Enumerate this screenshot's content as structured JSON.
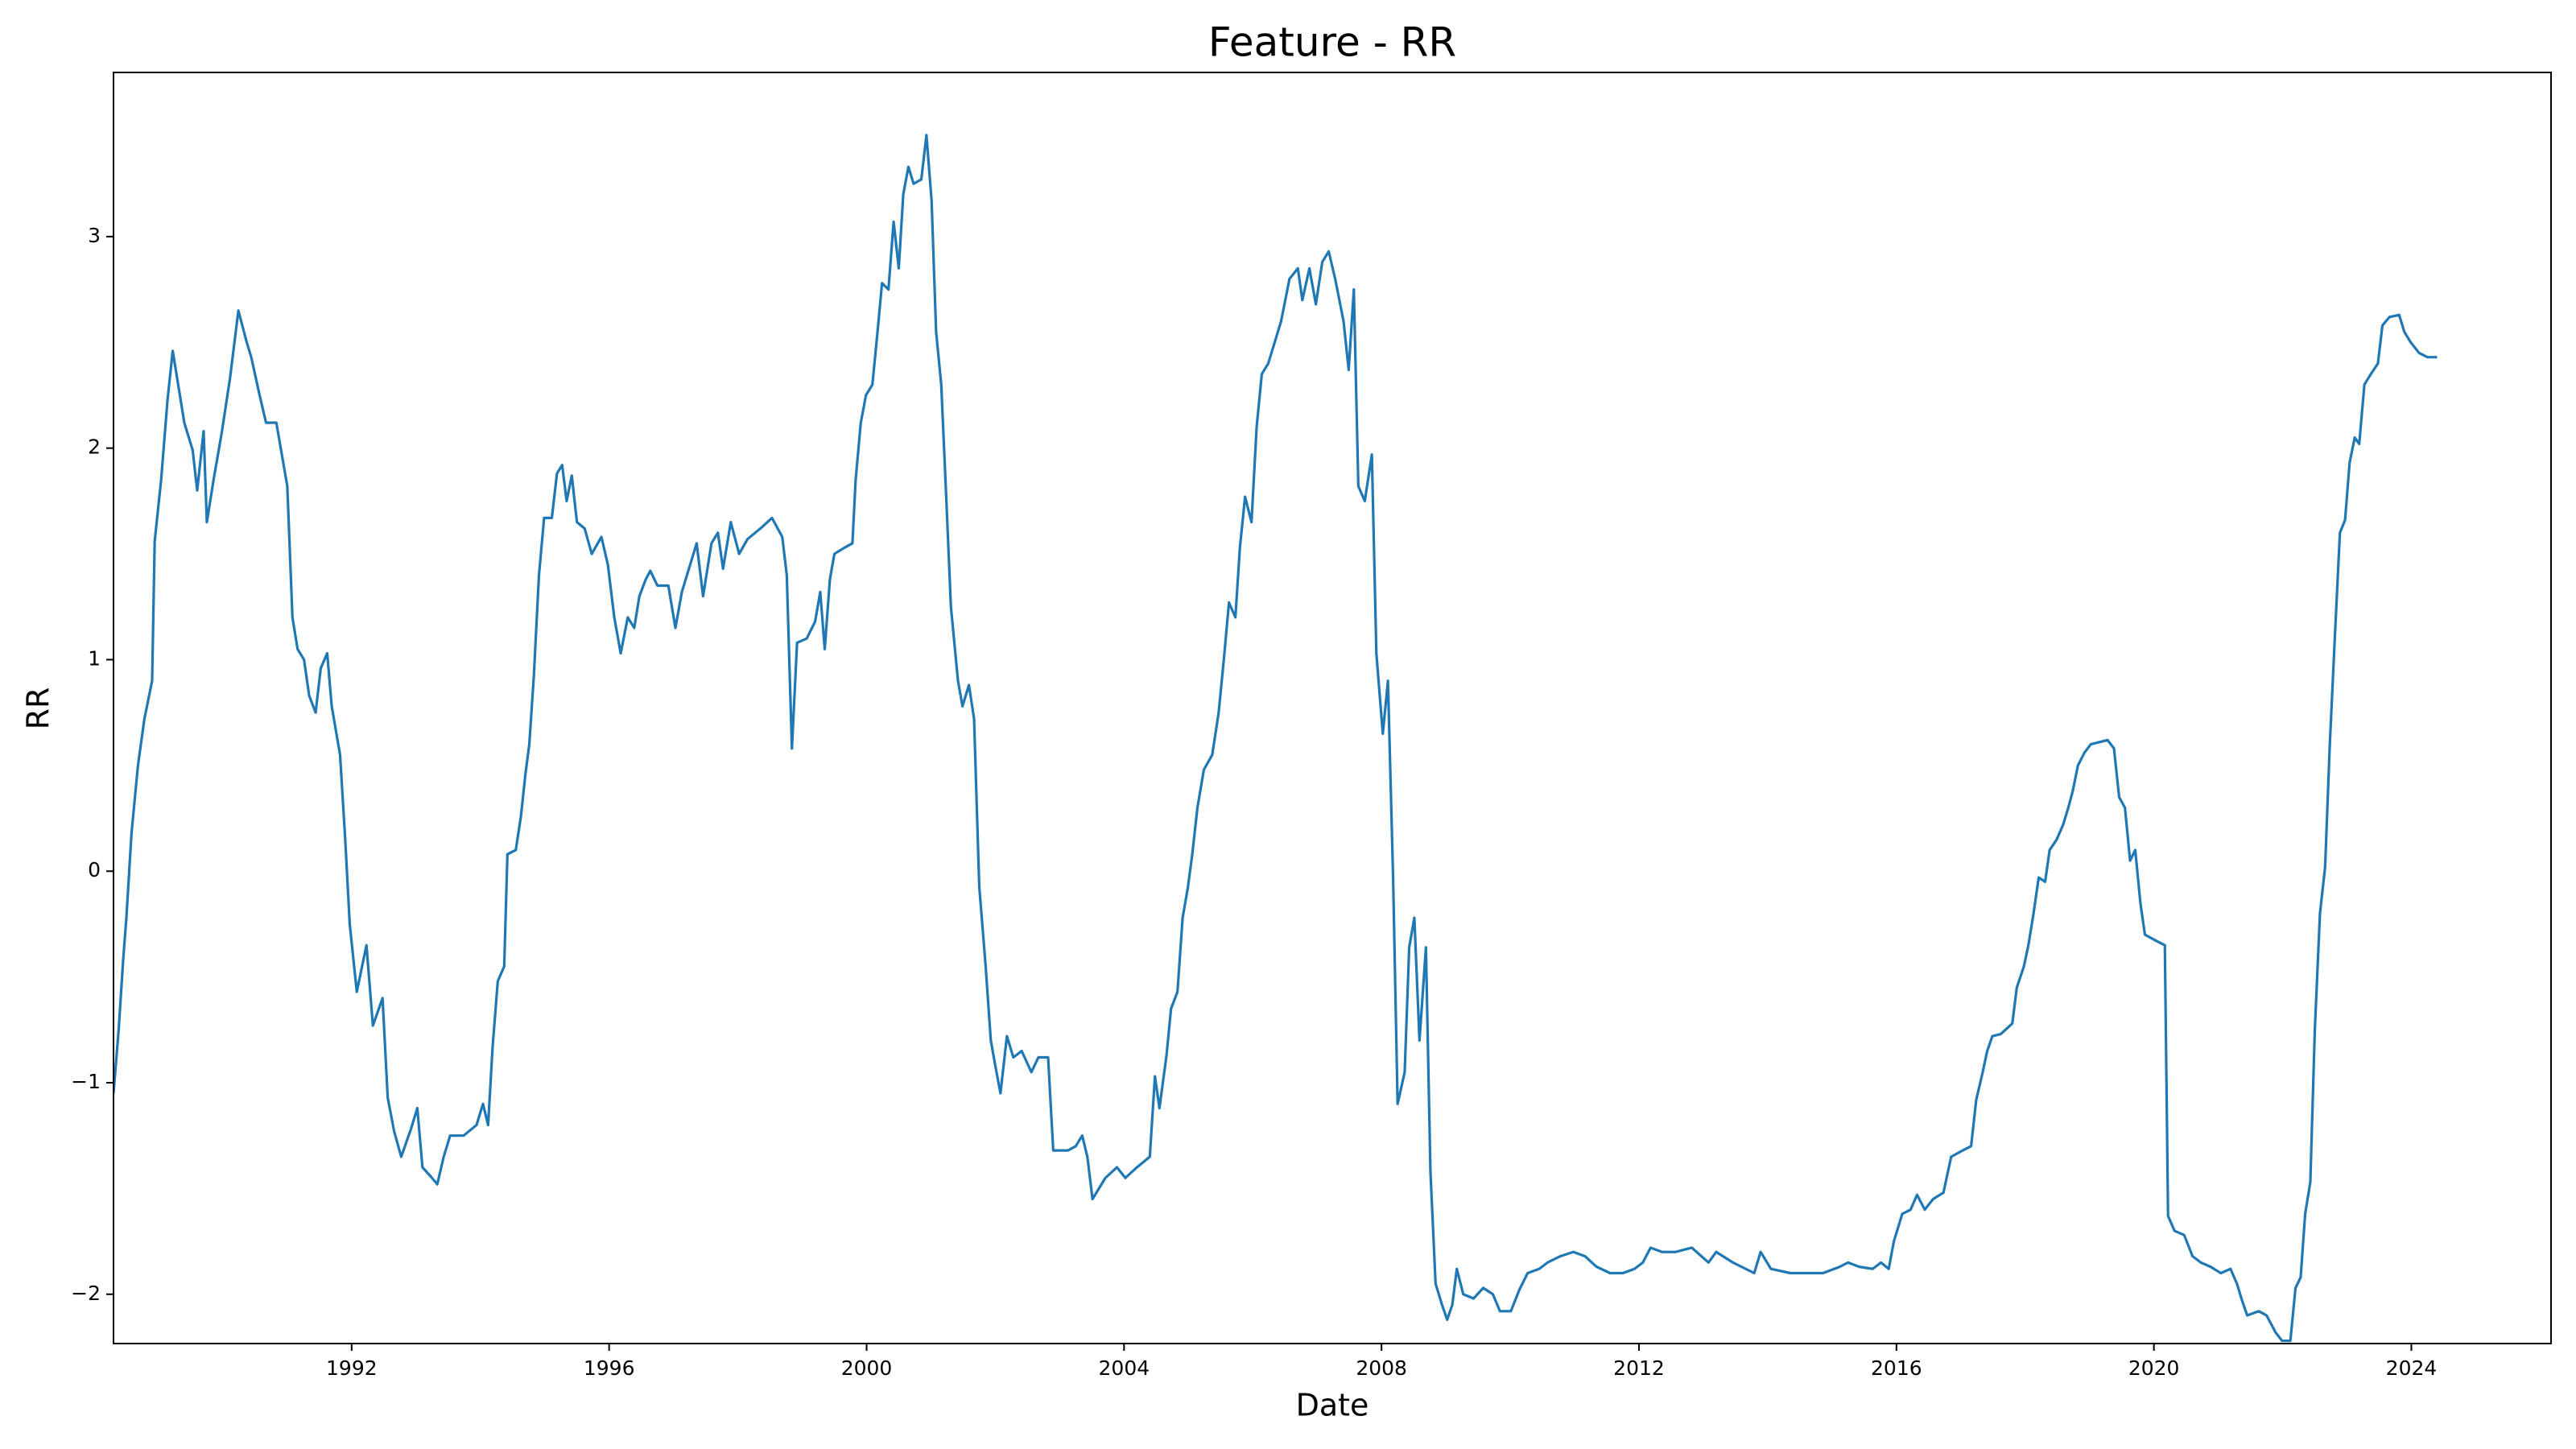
{
  "chart_data": {
    "type": "line",
    "title": "Feature - RR",
    "x_label": "Date",
    "y_label": "RR",
    "x": [
      1988.3,
      1988.38,
      1988.45,
      1988.5,
      1988.58,
      1988.68,
      1988.78,
      1988.9,
      1988.94,
      1989.04,
      1989.14,
      1989.22,
      1989.4,
      1989.53,
      1989.6,
      1989.7,
      1989.75,
      1989.86,
      1989.98,
      1990.11,
      1990.24,
      1990.37,
      1990.44,
      1990.57,
      1990.67,
      1990.83,
      1991.0,
      1991.08,
      1991.16,
      1991.26,
      1991.34,
      1991.44,
      1991.52,
      1991.62,
      1991.69,
      1991.82,
      1991.9,
      1991.97,
      1992.08,
      1992.23,
      1992.33,
      1992.48,
      1992.56,
      1992.66,
      1992.77,
      1992.92,
      1993.02,
      1993.1,
      1993.22,
      1993.33,
      1993.43,
      1993.53,
      1993.74,
      1993.94,
      1994.04,
      1994.12,
      1994.19,
      1994.27,
      1994.37,
      1994.42,
      1994.55,
      1994.63,
      1994.7,
      1994.76,
      1994.83,
      1994.91,
      1994.99,
      1995.11,
      1995.19,
      1995.27,
      1995.34,
      1995.42,
      1995.5,
      1995.62,
      1995.73,
      1995.88,
      1995.98,
      1996.08,
      1996.18,
      1996.29,
      1996.39,
      1996.47,
      1996.57,
      1996.64,
      1996.75,
      1996.92,
      1997.03,
      1997.13,
      1997.26,
      1997.36,
      1997.46,
      1997.59,
      1997.69,
      1997.77,
      1997.89,
      1998.02,
      1998.15,
      1998.35,
      1998.53,
      1998.69,
      1998.76,
      1998.84,
      1998.92,
      1999.07,
      1999.2,
      1999.28,
      1999.35,
      1999.43,
      1999.5,
      1999.66,
      1999.78,
      1999.83,
      1999.91,
      1999.99,
      2000.09,
      2000.17,
      2000.24,
      2000.34,
      2000.42,
      2000.5,
      2000.57,
      2000.65,
      2000.73,
      2000.85,
      2000.93,
      2001.01,
      2001.08,
      2001.16,
      2001.24,
      2001.31,
      2001.42,
      2001.49,
      2001.59,
      2001.67,
      2001.75,
      2001.85,
      2001.93,
      2002.0,
      2002.08,
      2002.18,
      2002.28,
      2002.41,
      2002.56,
      2002.67,
      2002.82,
      2002.9,
      2003.13,
      2003.25,
      2003.35,
      2003.43,
      2003.51,
      2003.61,
      2003.71,
      2003.89,
      2004.02,
      2004.2,
      2004.4,
      2004.48,
      2004.55,
      2004.66,
      2004.73,
      2004.83,
      2004.91,
      2004.99,
      2005.06,
      2005.14,
      2005.24,
      2005.37,
      2005.47,
      2005.55,
      2005.63,
      2005.73,
      2005.8,
      2005.88,
      2005.98,
      2006.06,
      2006.14,
      2006.24,
      2006.34,
      2006.44,
      2006.57,
      2006.7,
      2006.77,
      2006.88,
      2006.98,
      2007.08,
      2007.18,
      2007.28,
      2007.41,
      2007.49,
      2007.57,
      2007.64,
      2007.74,
      2007.85,
      2007.92,
      2008.02,
      2008.1,
      2008.18,
      2008.25,
      2008.36,
      2008.43,
      2008.51,
      2008.59,
      2008.69,
      2008.76,
      2008.84,
      2008.94,
      2009.02,
      2009.1,
      2009.17,
      2009.27,
      2009.43,
      2009.58,
      2009.73,
      2009.84,
      2010.01,
      2010.14,
      2010.27,
      2010.45,
      2010.58,
      2010.78,
      2010.98,
      2011.16,
      2011.34,
      2011.55,
      2011.75,
      2011.93,
      2012.06,
      2012.18,
      2012.36,
      2012.57,
      2012.82,
      2013.08,
      2013.2,
      2013.46,
      2013.79,
      2013.89,
      2014.05,
      2014.35,
      2014.61,
      2014.86,
      2015.12,
      2015.25,
      2015.42,
      2015.63,
      2015.76,
      2015.88,
      2015.96,
      2016.09,
      2016.22,
      2016.32,
      2016.44,
      2016.57,
      2016.73,
      2016.85,
      2017.03,
      2017.16,
      2017.24,
      2017.34,
      2017.41,
      2017.49,
      2017.62,
      2017.8,
      2017.87,
      2017.98,
      2018.05,
      2018.13,
      2018.21,
      2018.31,
      2018.38,
      2018.49,
      2018.59,
      2018.67,
      2018.74,
      2018.82,
      2018.92,
      2019.02,
      2019.15,
      2019.28,
      2019.38,
      2019.46,
      2019.55,
      2019.63,
      2019.71,
      2019.79,
      2019.86,
      2020.04,
      2020.17,
      2020.22,
      2020.32,
      2020.47,
      2020.6,
      2020.73,
      2020.88,
      2021.04,
      2021.19,
      2021.29,
      2021.37,
      2021.45,
      2021.63,
      2021.75,
      2021.89,
      2021.99,
      2022.12,
      2022.2,
      2022.28,
      2022.35,
      2022.43,
      2022.5,
      2022.58,
      2022.66,
      2022.73,
      2022.81,
      2022.89,
      2022.97,
      2023.04,
      2023.12,
      2023.19,
      2023.27,
      2023.37,
      2023.48,
      2023.55,
      2023.66,
      2023.81,
      2023.89,
      2023.99,
      2024.12,
      2024.25,
      2024.4
    ],
    "series": [
      {
        "name": "RR",
        "color": "#1f77b4",
        "values": [
          -1.05,
          -0.75,
          -0.42,
          -0.22,
          0.18,
          0.5,
          0.72,
          0.9,
          1.56,
          1.85,
          2.23,
          2.46,
          2.12,
          1.99,
          1.8,
          2.08,
          1.65,
          1.86,
          2.07,
          2.33,
          2.65,
          2.5,
          2.43,
          2.25,
          2.12,
          2.12,
          1.82,
          1.2,
          1.05,
          1.0,
          0.83,
          0.75,
          0.96,
          1.03,
          0.78,
          0.55,
          0.15,
          -0.25,
          -0.57,
          -0.35,
          -0.73,
          -0.6,
          -1.07,
          -1.23,
          -1.35,
          -1.22,
          -1.12,
          -1.4,
          -1.44,
          -1.48,
          -1.35,
          -1.25,
          -1.25,
          -1.2,
          -1.1,
          -1.2,
          -0.83,
          -0.52,
          -0.45,
          0.08,
          0.1,
          0.26,
          0.46,
          0.6,
          0.92,
          1.4,
          1.67,
          1.67,
          1.88,
          1.92,
          1.75,
          1.87,
          1.65,
          1.62,
          1.5,
          1.58,
          1.45,
          1.2,
          1.03,
          1.2,
          1.15,
          1.3,
          1.38,
          1.42,
          1.35,
          1.35,
          1.15,
          1.32,
          1.45,
          1.55,
          1.3,
          1.55,
          1.6,
          1.43,
          1.65,
          1.5,
          1.57,
          1.62,
          1.67,
          1.58,
          1.4,
          0.58,
          1.08,
          1.1,
          1.18,
          1.32,
          1.05,
          1.38,
          1.5,
          1.53,
          1.55,
          1.85,
          2.12,
          2.25,
          2.3,
          2.55,
          2.78,
          2.75,
          3.07,
          2.85,
          3.2,
          3.33,
          3.25,
          3.27,
          3.48,
          3.17,
          2.55,
          2.3,
          1.75,
          1.25,
          0.9,
          0.78,
          0.88,
          0.72,
          -0.07,
          -0.45,
          -0.8,
          -0.92,
          -1.05,
          -0.78,
          -0.88,
          -0.85,
          -0.95,
          -0.88,
          -0.88,
          -1.32,
          -1.32,
          -1.3,
          -1.25,
          -1.35,
          -1.55,
          -1.5,
          -1.45,
          -1.4,
          -1.45,
          -1.4,
          -1.35,
          -0.97,
          -1.12,
          -0.87,
          -0.65,
          -0.57,
          -0.22,
          -0.08,
          0.08,
          0.3,
          0.48,
          0.55,
          0.75,
          1.0,
          1.27,
          1.2,
          1.53,
          1.77,
          1.65,
          2.1,
          2.35,
          2.4,
          2.5,
          2.6,
          2.8,
          2.85,
          2.7,
          2.85,
          2.68,
          2.88,
          2.93,
          2.8,
          2.6,
          2.37,
          2.75,
          1.82,
          1.75,
          1.97,
          1.03,
          0.65,
          0.9,
          -0.03,
          -1.1,
          -0.95,
          -0.36,
          -0.22,
          -0.8,
          -0.36,
          -1.42,
          -1.95,
          -2.05,
          -2.12,
          -2.05,
          -1.88,
          -2.0,
          -2.02,
          -1.97,
          -2.0,
          -2.08,
          -2.08,
          -1.98,
          -1.9,
          -1.88,
          -1.85,
          -1.82,
          -1.8,
          -1.82,
          -1.87,
          -1.9,
          -1.9,
          -1.88,
          -1.85,
          -1.78,
          -1.8,
          -1.8,
          -1.78,
          -1.85,
          -1.8,
          -1.85,
          -1.9,
          -1.8,
          -1.88,
          -1.9,
          -1.9,
          -1.9,
          -1.87,
          -1.85,
          -1.87,
          -1.88,
          -1.85,
          -1.88,
          -1.75,
          -1.62,
          -1.6,
          -1.53,
          -1.6,
          -1.55,
          -1.52,
          -1.35,
          -1.32,
          -1.3,
          -1.08,
          -0.95,
          -0.85,
          -0.78,
          -0.77,
          -0.72,
          -0.55,
          -0.45,
          -0.35,
          -0.2,
          -0.03,
          -0.05,
          0.1,
          0.15,
          0.22,
          0.3,
          0.38,
          0.5,
          0.56,
          0.6,
          0.61,
          0.62,
          0.58,
          0.35,
          0.3,
          0.05,
          0.1,
          -0.15,
          -0.3,
          -0.33,
          -0.35,
          -1.63,
          -1.7,
          -1.72,
          -1.82,
          -1.85,
          -1.87,
          -1.9,
          -1.88,
          -1.95,
          -2.03,
          -2.1,
          -2.08,
          -2.1,
          -2.18,
          -2.22,
          -2.22,
          -1.97,
          -1.92,
          -1.62,
          -1.47,
          -0.75,
          -0.2,
          0.02,
          0.58,
          1.1,
          1.6,
          1.66,
          1.93,
          2.05,
          2.02,
          2.3,
          2.35,
          2.4,
          2.58,
          2.62,
          2.63,
          2.55,
          2.5,
          2.45,
          2.43,
          2.43
        ]
      }
    ],
    "xlim": [
      1988.3,
      2026.17
    ],
    "xticks": [
      1992,
      1996,
      2000,
      2004,
      2008,
      2012,
      2016,
      2020,
      2024
    ],
    "ylim": [
      -2.233,
      3.776
    ],
    "yticks": [
      {
        "value": -2,
        "label": "−2"
      },
      {
        "value": -1,
        "label": "−1"
      },
      0,
      1,
      2,
      3
    ],
    "grid": false
  }
}
